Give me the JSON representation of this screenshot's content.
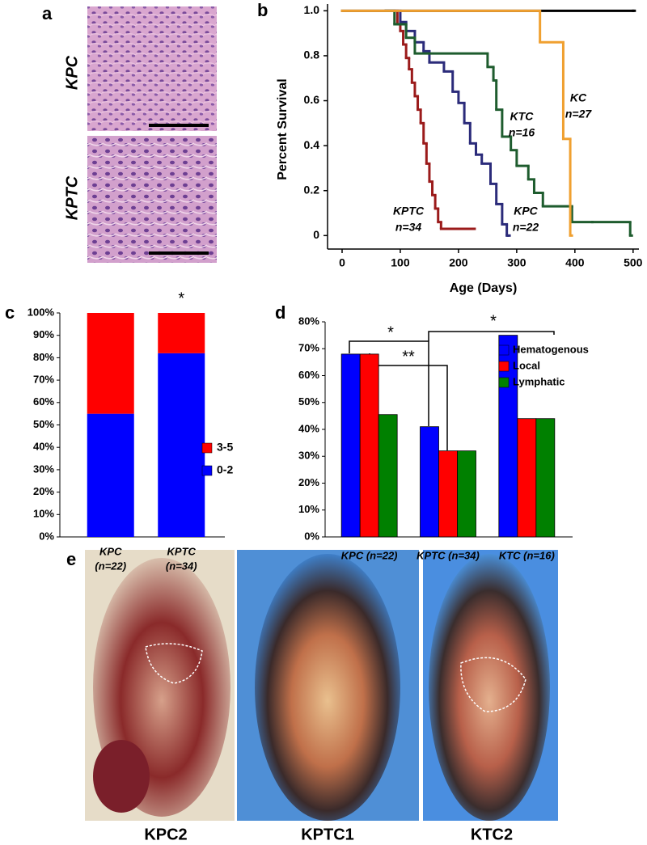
{
  "panel_letters": [
    "a",
    "b",
    "c",
    "d",
    "e"
  ],
  "histology": {
    "labels": [
      "KPC",
      "KPTC"
    ]
  },
  "photos": {
    "labels": [
      "KPC2",
      "KPTC1",
      "KTC2"
    ]
  },
  "chart_data": [
    {
      "type": "step",
      "ylabel": "Percent Survival",
      "xlabel": "Age (Days)",
      "xlim": [
        -25,
        510
      ],
      "ylim": [
        -0.06,
        1.03
      ],
      "xticks": [
        0,
        100,
        200,
        300,
        400,
        500
      ],
      "yticks": [
        0,
        0.2,
        0.4,
        0.6,
        0.8,
        {
          "value": 1,
          "label": "1.0"
        }
      ],
      "series": [
        {
          "color": "#000000",
          "x": [
            0,
            500
          ],
          "values": [
            1,
            1
          ]
        },
        {
          "name": "KPTC",
          "count_label": "n=34",
          "color": "#9b1b1b",
          "x": [
            75,
            95,
            100,
            105,
            110,
            115,
            120,
            125,
            130,
            135,
            140,
            145,
            150,
            155,
            160,
            165,
            170,
            225
          ],
          "values": [
            1,
            0.94,
            0.91,
            0.85,
            0.79,
            0.74,
            0.68,
            0.62,
            0.56,
            0.5,
            0.41,
            0.32,
            0.24,
            0.18,
            0.12,
            0.06,
            0.03,
            0.03
          ]
        },
        {
          "name": "KPC",
          "count_label": "n=22",
          "color": "#2b2b7a",
          "x": [
            75,
            100,
            110,
            125,
            140,
            150,
            175,
            190,
            200,
            210,
            220,
            230,
            240,
            255,
            265,
            275,
            283,
            285
          ],
          "values": [
            1,
            0.95,
            0.91,
            0.86,
            0.82,
            0.77,
            0.73,
            0.64,
            0.59,
            0.5,
            0.41,
            0.36,
            0.32,
            0.23,
            0.14,
            0.05,
            0,
            0
          ]
        },
        {
          "name": "KTC",
          "count_label": "n=16",
          "color": "#1e5c2e",
          "x": [
            75,
            90,
            110,
            125,
            250,
            260,
            265,
            275,
            290,
            300,
            320,
            330,
            345,
            395,
            430,
            495
          ],
          "values": [
            1,
            0.94,
            0.88,
            0.81,
            0.75,
            0.69,
            0.56,
            0.44,
            0.38,
            0.31,
            0.25,
            0.19,
            0.13,
            0.06,
            0.06,
            0
          ]
        },
        {
          "name": "KC",
          "count_label": "n=27",
          "color": "#f0a030",
          "x": [
            0,
            340,
            380,
            392
          ],
          "values": [
            1,
            0.86,
            0.43,
            0
          ]
        }
      ]
    },
    {
      "type": "stacked_bar",
      "categories": [
        "KPC",
        "KPTC"
      ],
      "category_notes": [
        "(n=22)",
        "(n=34)"
      ],
      "series": [
        {
          "name": "0-2",
          "color": "#0000ff",
          "values": [
            55,
            82
          ]
        },
        {
          "name": "3-5",
          "color": "#ff0000",
          "values": [
            45,
            18
          ]
        }
      ],
      "ylim": [
        0,
        100
      ],
      "yticks": [
        {
          "value": 0,
          "label": "0%"
        },
        {
          "value": 10,
          "label": "10%"
        },
        {
          "value": 20,
          "label": "20%"
        },
        {
          "value": 30,
          "label": "30%"
        },
        {
          "value": 40,
          "label": "40%"
        },
        {
          "value": 50,
          "label": "50%"
        },
        {
          "value": 60,
          "label": "60%"
        },
        {
          "value": 70,
          "label": "70%"
        },
        {
          "value": 80,
          "label": "80%"
        },
        {
          "value": 90,
          "label": "90%"
        },
        {
          "value": 100,
          "label": "100%"
        }
      ],
      "annotation": "*"
    },
    {
      "type": "grouped_bar",
      "categories": [
        "KPC (n=22)",
        "KPTC (n=34)",
        "KTC (n=16)"
      ],
      "series": [
        {
          "name": "Hematogenous",
          "color": "#0000ff",
          "values": [
            68,
            41,
            75
          ]
        },
        {
          "name": "Local",
          "color": "#ff0000",
          "values": [
            68,
            32,
            44
          ]
        },
        {
          "name": "Lymphatic",
          "color": "#008000",
          "values": [
            45.5,
            32,
            44
          ]
        }
      ],
      "ylim": [
        0,
        80
      ],
      "yticks": [
        {
          "value": 0,
          "label": "0%"
        },
        {
          "value": 10,
          "label": "10%"
        },
        {
          "value": 20,
          "label": "20%"
        },
        {
          "value": 30,
          "label": "30%"
        },
        {
          "value": 40,
          "label": "40%"
        },
        {
          "value": 50,
          "label": "50%"
        },
        {
          "value": 60,
          "label": "60%"
        },
        {
          "value": 70,
          "label": "70%"
        },
        {
          "value": 80,
          "label": "80%"
        }
      ],
      "legend": "upper right",
      "annotations": [
        "*",
        "**",
        "*"
      ]
    }
  ]
}
